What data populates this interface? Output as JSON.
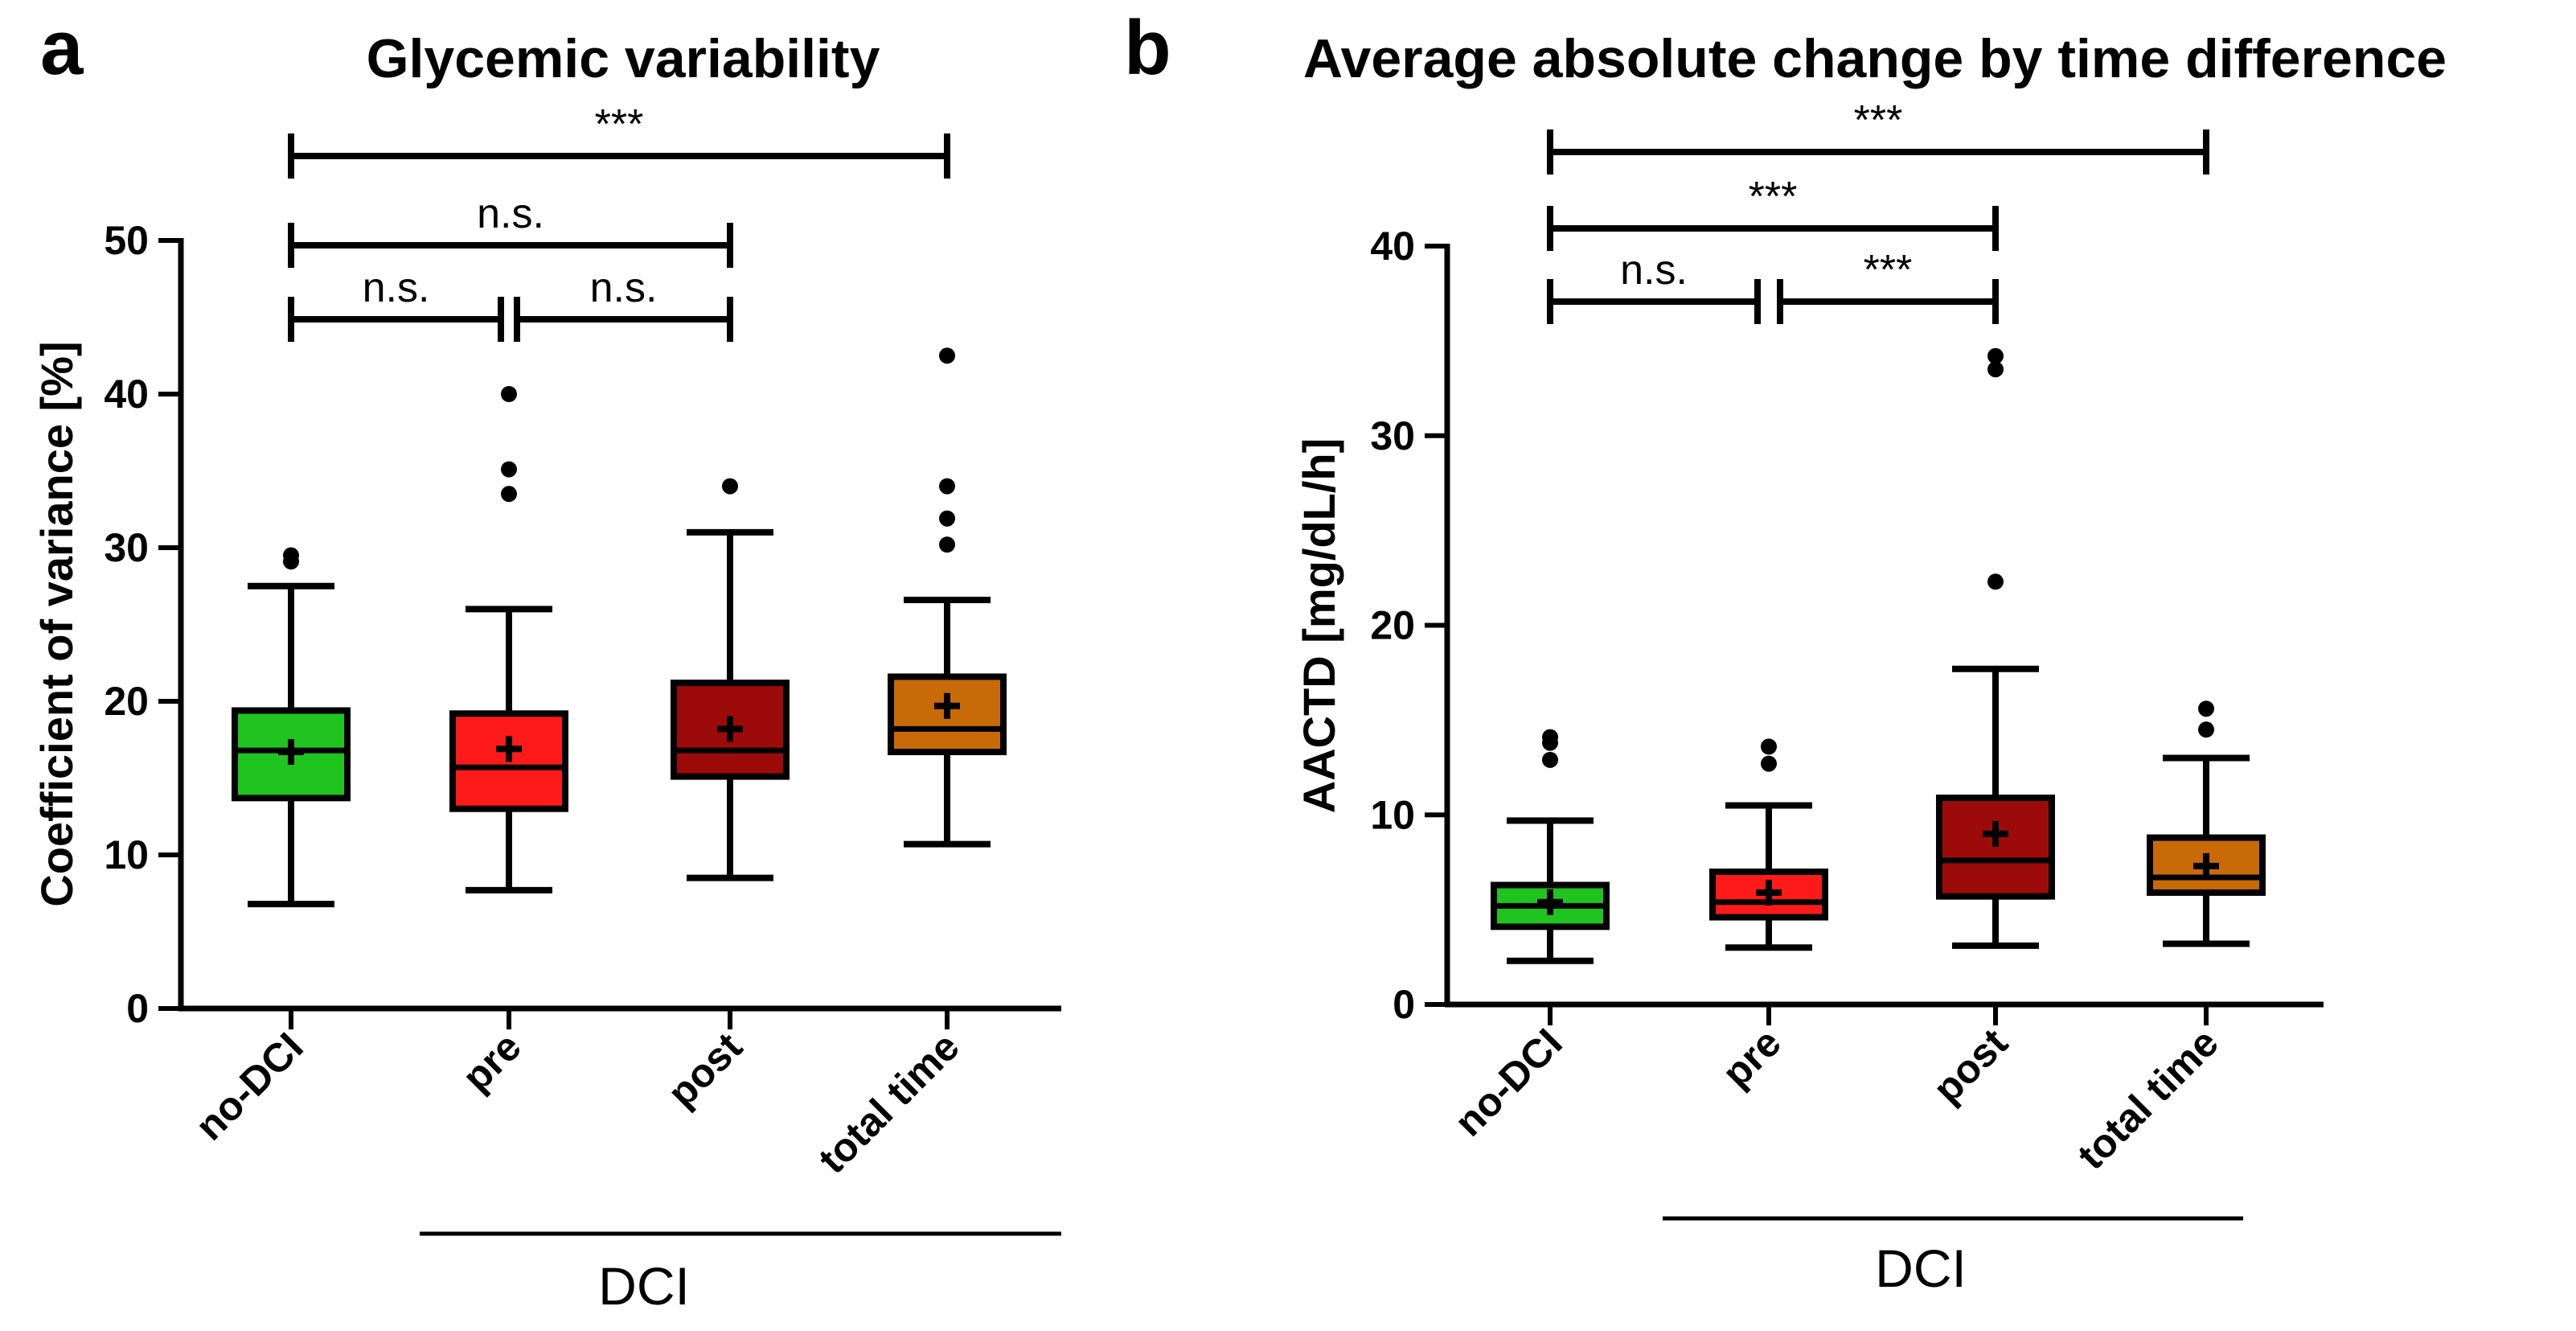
{
  "chart_data": [
    {
      "panel": "a",
      "type": "box",
      "title": "Glycemic variability",
      "xlabel": "",
      "ylabel": "Coefficient of variance [%]",
      "ylim": [
        0,
        50
      ],
      "yticks": [
        0,
        10,
        20,
        30,
        40,
        50
      ],
      "categories": [
        "no-DCI",
        "pre",
        "post",
        "total time"
      ],
      "group_label": "DCI",
      "group_members": [
        "pre",
        "post",
        "total time"
      ],
      "boxes": [
        {
          "category": "no-DCI",
          "color": "#1fc41f",
          "whisker_low": 6.8,
          "q1": 13.7,
          "median": 16.8,
          "q3": 19.4,
          "whisker_high": 27.5,
          "mean": 16.7,
          "outliers": [
            29.1,
            29.5
          ]
        },
        {
          "category": "pre",
          "color": "#ff1a1a",
          "whisker_low": 7.7,
          "q1": 13.0,
          "median": 15.7,
          "q3": 19.2,
          "whisker_high": 26.0,
          "mean": 16.9,
          "outliers": [
            33.5,
            35.1,
            40.0
          ]
        },
        {
          "category": "post",
          "color": "#9c0a0a",
          "whisker_low": 8.5,
          "q1": 15.1,
          "median": 16.8,
          "q3": 21.2,
          "whisker_high": 31.0,
          "mean": 18.2,
          "outliers": [
            34.0
          ]
        },
        {
          "category": "total time",
          "color": "#c86a07",
          "whisker_low": 10.7,
          "q1": 16.7,
          "median": 18.2,
          "q3": 21.6,
          "whisker_high": 26.6,
          "mean": 19.7,
          "outliers": [
            30.2,
            31.9,
            34.0,
            42.5
          ]
        }
      ],
      "comparisons": [
        {
          "from": "no-DCI",
          "to": "total time",
          "label": "***"
        },
        {
          "from": "no-DCI",
          "to": "post",
          "label": "n.s."
        },
        {
          "from": "no-DCI",
          "to": "pre",
          "label": "n.s."
        },
        {
          "from": "pre",
          "to": "post",
          "label": "n.s."
        }
      ]
    },
    {
      "panel": "b",
      "type": "box",
      "title": "Average absolute change by time difference",
      "xlabel": "",
      "ylabel": "AACTD [mg/dL/h]",
      "ylim": [
        0,
        40
      ],
      "yticks": [
        0,
        10,
        20,
        30,
        40
      ],
      "categories": [
        "no-DCI",
        "pre",
        "post",
        "total time"
      ],
      "group_label": "DCI",
      "group_members": [
        "pre",
        "post",
        "total time"
      ],
      "boxes": [
        {
          "category": "no-DCI",
          "color": "#1fc41f",
          "whisker_low": 2.3,
          "q1": 4.1,
          "median": 5.2,
          "q3": 6.3,
          "whisker_high": 9.7,
          "mean": 5.4,
          "outliers": [
            12.9,
            13.8,
            14.1
          ]
        },
        {
          "category": "pre",
          "color": "#ff1a1a",
          "whisker_low": 3.0,
          "q1": 4.6,
          "median": 5.4,
          "q3": 7.0,
          "whisker_high": 10.5,
          "mean": 5.9,
          "outliers": [
            12.7,
            13.6
          ]
        },
        {
          "category": "post",
          "color": "#9c0a0a",
          "whisker_low": 3.1,
          "q1": 5.7,
          "median": 7.6,
          "q3": 10.9,
          "whisker_high": 17.7,
          "mean": 9.0,
          "outliers": [
            22.3,
            33.5,
            34.2
          ]
        },
        {
          "category": "total time",
          "color": "#c86a07",
          "whisker_low": 3.2,
          "q1": 5.9,
          "median": 6.7,
          "q3": 8.8,
          "whisker_high": 13.0,
          "mean": 7.3,
          "outliers": [
            14.5,
            15.6
          ]
        }
      ],
      "comparisons": [
        {
          "from": "no-DCI",
          "to": "total time",
          "label": "***"
        },
        {
          "from": "no-DCI",
          "to": "post",
          "label": "***"
        },
        {
          "from": "no-DCI",
          "to": "pre",
          "label": "n.s."
        },
        {
          "from": "pre",
          "to": "post",
          "label": "***"
        }
      ]
    }
  ]
}
